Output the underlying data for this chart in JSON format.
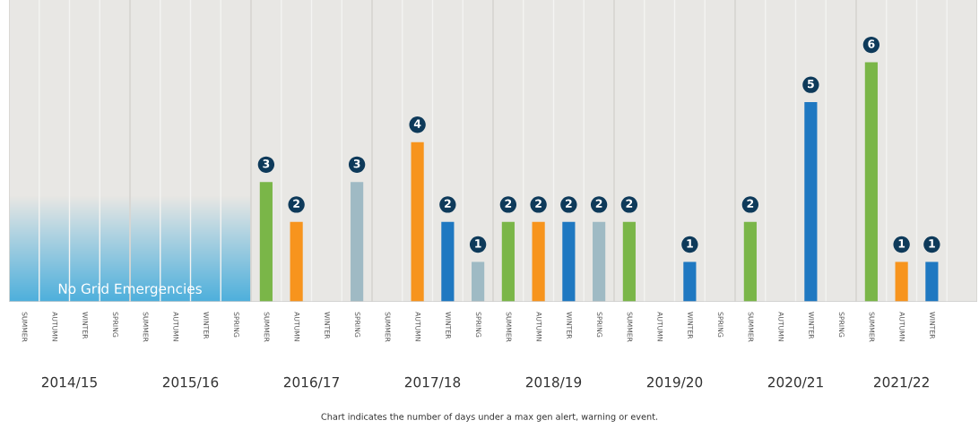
{
  "chart_data": {
    "type": "bar",
    "categories": [
      "SUMMER",
      "AUTUMN",
      "WINTER",
      "SPRING",
      "SUMMER",
      "AUTUMN",
      "WINTER",
      "SPRING",
      "SUMMER",
      "AUTUMN",
      "WINTER",
      "SPRING",
      "SUMMER",
      "AUTUMN",
      "WINTER",
      "SPRING",
      "SUMMER",
      "AUTUMN",
      "WINTER",
      "SPRING",
      "SUMMER",
      "AUTUMN",
      "WINTER",
      "SPRING",
      "SUMMER",
      "AUTUMN",
      "WINTER",
      "SPRING",
      "SUMMER",
      "AUTUMN",
      "WINTER"
    ],
    "values": [
      null,
      null,
      null,
      null,
      null,
      null,
      null,
      null,
      3,
      2,
      null,
      3,
      null,
      4,
      2,
      1,
      2,
      2,
      2,
      2,
      2,
      null,
      1,
      null,
      2,
      null,
      5,
      null,
      6,
      1,
      1
    ],
    "colors": [
      "#7ab648",
      "#f7941d",
      "#1f78c1",
      "#9fbac4",
      "#7ab648",
      "#f7941d",
      "#1f78c1",
      "#9fbac4",
      "#7ab648",
      "#f7941d",
      "#1f78c1",
      "#9fbac4",
      "#7ab648",
      "#f7941d",
      "#1f78c1",
      "#9fbac4",
      "#7ab648",
      "#f7941d",
      "#1f78c1",
      "#9fbac4",
      "#7ab648",
      "#f7941d",
      "#1f78c1",
      "#9fbac4",
      "#7ab648",
      "#f7941d",
      "#1f78c1",
      "#9fbac4",
      "#7ab648",
      "#f7941d",
      "#1f78c1"
    ],
    "data_labels": true,
    "grid": "x",
    "annotations": [
      "2014/15",
      "2015/16",
      "2016/17",
      "2017/18",
      "2018/19",
      "2019/20",
      "2020/21",
      "2021/22",
      "No Grid Emergencies",
      "Chart indicates the number of days under a max gen alert, warning or event."
    ]
  }
}
